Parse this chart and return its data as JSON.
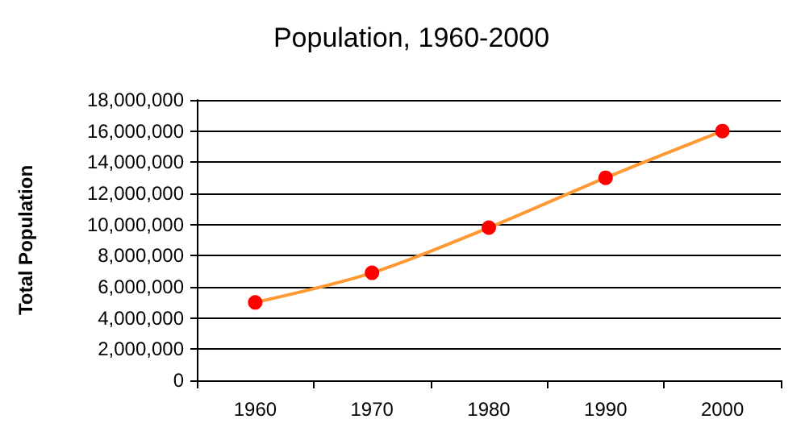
{
  "chart_data": {
    "type": "line",
    "title": "Population, 1960-2000",
    "ylabel": "Total Population",
    "categories": [
      "1960",
      "1970",
      "1980",
      "1990",
      "2000"
    ],
    "series": [
      {
        "color": "#ff9933",
        "colors": [
          "#ff0000",
          "#ff0000",
          "#ff0000",
          "#ff0000",
          "#ff0000"
        ],
        "values": [
          5000000,
          6900000,
          9800000,
          13000000,
          16000000
        ]
      }
    ],
    "ylim": [
      0,
      18000000
    ],
    "yticks": [
      {
        "value": 0,
        "label": "0"
      },
      {
        "value": 2000000,
        "label": "2,000,000"
      },
      {
        "value": 4000000,
        "label": "4,000,000"
      },
      {
        "value": 6000000,
        "label": "6,000,000"
      },
      {
        "value": 8000000,
        "label": "8,000,000"
      },
      {
        "value": 10000000,
        "label": "10,000,000"
      },
      {
        "value": 12000000,
        "label": "12,000,000"
      },
      {
        "value": 14000000,
        "label": "14,000,000"
      },
      {
        "value": 16000000,
        "label": "16,000,000"
      },
      {
        "value": 18000000,
        "label": "18,000,000"
      }
    ],
    "grid": "y",
    "marker": "circle",
    "line_style": "solid"
  }
}
